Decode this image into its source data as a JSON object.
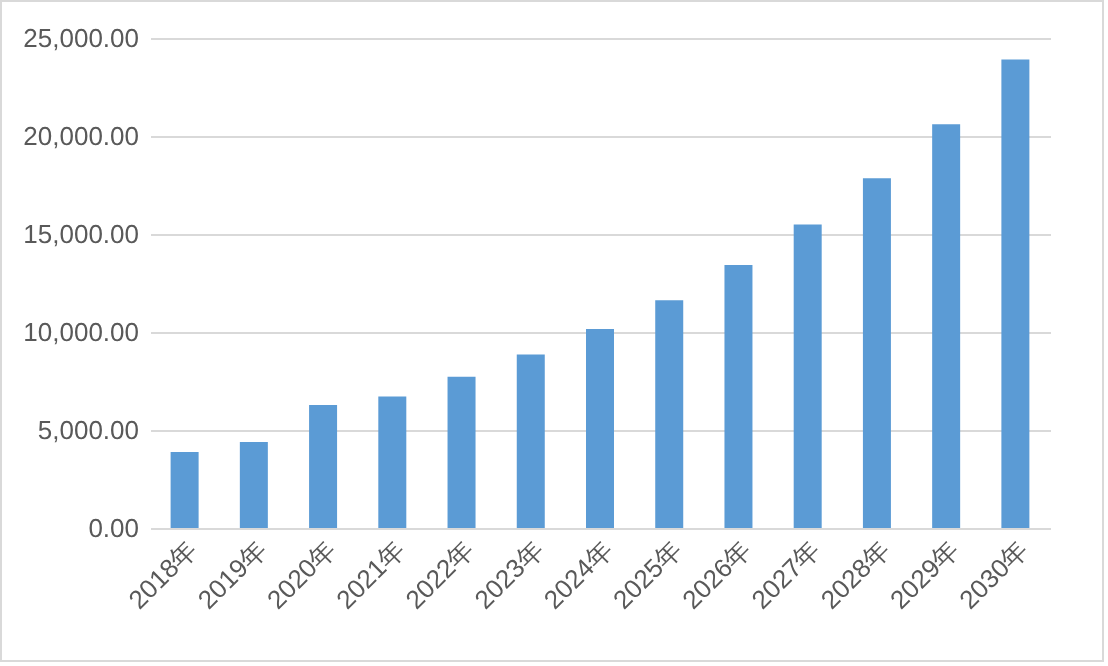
{
  "chart_data": {
    "type": "bar",
    "categories": [
      "2018年",
      "2019年",
      "2020年",
      "2021年",
      "2022年",
      "2023年",
      "2024年",
      "2025年",
      "2026年",
      "2027年",
      "2028年",
      "2029年",
      "2030年"
    ],
    "values": [
      3880,
      4390,
      6270,
      6710,
      7720,
      8850,
      10150,
      11620,
      13420,
      15480,
      17850,
      20600,
      23900
    ],
    "color": "#5b9bd5",
    "ylim": [
      0,
      25000
    ],
    "yticks": [
      {
        "value": 0,
        "label": "0.00"
      },
      {
        "value": 5000,
        "label": "5,000.00"
      },
      {
        "value": 10000,
        "label": "10,000.00"
      },
      {
        "value": 15000,
        "label": "15,000.00"
      },
      {
        "value": 20000,
        "label": "20,000.00"
      },
      {
        "value": 25000,
        "label": "25,000.00"
      }
    ],
    "grid": "y"
  }
}
